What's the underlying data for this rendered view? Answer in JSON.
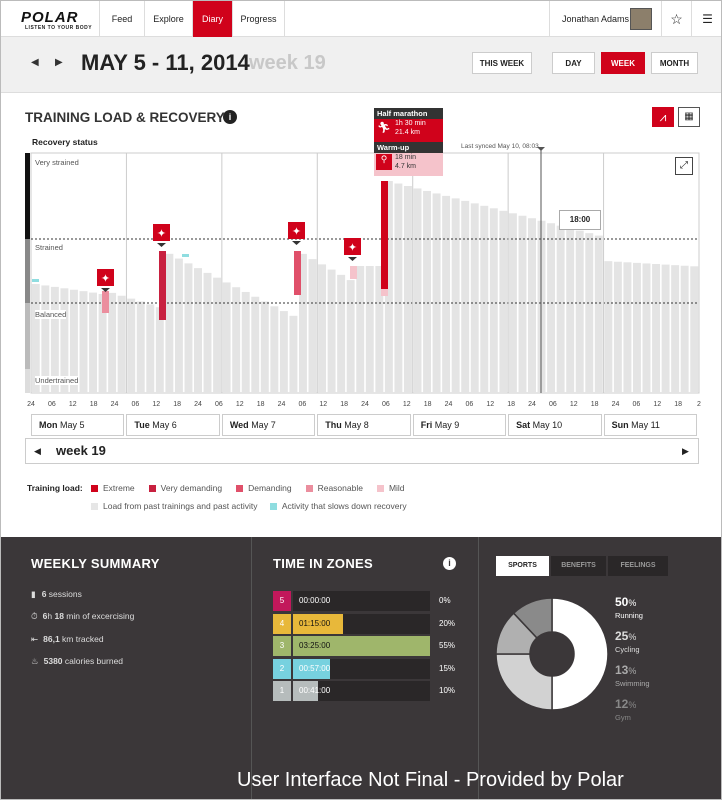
{
  "nav": {
    "logo": "POLAR",
    "logo_sub": "LISTEN TO YOUR BODY",
    "tabs": [
      "Feed",
      "Explore",
      "Diary",
      "Progress"
    ],
    "user": "Jonathan Adams"
  },
  "week": {
    "range": "MAY 5 - 11, 2014",
    "label": "week 19",
    "this_week": "THIS WEEK",
    "day": "DAY",
    "week": "WEEK",
    "month": "MONTH"
  },
  "chart": {
    "title": "TRAINING LOAD & RECOVERY",
    "subtitle": "Recovery status",
    "synced": "Last synced May 10, 08:03",
    "time_tip": "18:00",
    "levels": [
      "Very strained",
      "Strained",
      "Balanced",
      "Undertrained"
    ],
    "popup1": {
      "title": "Half marathon",
      "dur": "1h 30 min",
      "dist": "21.4 km"
    },
    "popup2": {
      "title": "Warm-up",
      "dur": "18 min",
      "dist": "4.7 km"
    },
    "ticks": [
      "24",
      "06",
      "12",
      "18",
      "24",
      "06",
      "12",
      "18",
      "24",
      "06",
      "12",
      "18",
      "24",
      "06",
      "12",
      "18",
      "24",
      "06",
      "12",
      "18",
      "24",
      "06",
      "12",
      "18",
      "24",
      "06",
      "12",
      "18",
      "24",
      "06",
      "12",
      "18",
      "2"
    ],
    "days": [
      {
        "d": "Mon",
        "l": "May 5"
      },
      {
        "d": "Tue",
        "l": "May 6"
      },
      {
        "d": "Wed",
        "l": "May 7"
      },
      {
        "d": "Thu",
        "l": "May 8"
      },
      {
        "d": "Fri",
        "l": "May 9"
      },
      {
        "d": "Sat",
        "l": "May 10"
      },
      {
        "d": "Sun",
        "l": "May 11"
      }
    ],
    "week_nav": "week 19"
  },
  "legend": {
    "label": "Training load:",
    "items": [
      {
        "t": "Extreme",
        "c": "#d0021b"
      },
      {
        "t": "Very demanding",
        "c": "#c8203f"
      },
      {
        "t": "Demanding",
        "c": "#e0506a"
      },
      {
        "t": "Reasonable",
        "c": "#eb8e9e"
      },
      {
        "t": "Mild",
        "c": "#f5c3cb"
      }
    ],
    "load_past": "Load from past trainings and past activity",
    "slows": "Activity that slows down recovery",
    "c_load": "#e6e6e6",
    "c_slow": "#8fdde0"
  },
  "summary": {
    "title": "WEEKLY SUMMARY",
    "rows": [
      {
        "b": "6",
        "t": " sessions"
      },
      {
        "b": "6",
        "t": "h ",
        "b2": "18",
        "t2": " min of excercising"
      },
      {
        "b": "86,1",
        "t": " km tracked"
      },
      {
        "b": "5380",
        "t": " calories burned"
      }
    ]
  },
  "zones": {
    "title": "TIME IN ZONES",
    "rows": [
      {
        "z": "5",
        "time": "00:00:00",
        "pct": "0%",
        "c": "#c2185b",
        "v": 0
      },
      {
        "z": "4",
        "time": "01:15:00",
        "pct": "20%",
        "c": "#e8b83a",
        "v": 20
      },
      {
        "z": "3",
        "time": "03:25:00",
        "pct": "55%",
        "c": "#9fb66b",
        "v": 55
      },
      {
        "z": "2",
        "time": "00:57:00",
        "pct": "15%",
        "c": "#77d1df",
        "v": 15
      },
      {
        "z": "1",
        "time": "00:41:00",
        "pct": "10%",
        "c": "#b6bcbc",
        "v": 10
      }
    ]
  },
  "sports": {
    "tabs": [
      "SPORTS",
      "BENEFITS",
      "FEELINGS"
    ],
    "items": [
      {
        "p": "50",
        "u": "%",
        "n": "Running",
        "v": 50,
        "c": "#ffffff"
      },
      {
        "p": "25",
        "u": "%",
        "n": "Cycling",
        "v": 25,
        "c": "#d2d2d2"
      },
      {
        "p": "13",
        "u": "%",
        "n": "Swimming",
        "v": 13,
        "c": "#b0b0b0"
      },
      {
        "p": "12",
        "u": "%",
        "n": "Gym",
        "v": 12,
        "c": "#8a8a8a"
      }
    ]
  },
  "watermark": "User Interface Not Final - Provided by Polar"
}
